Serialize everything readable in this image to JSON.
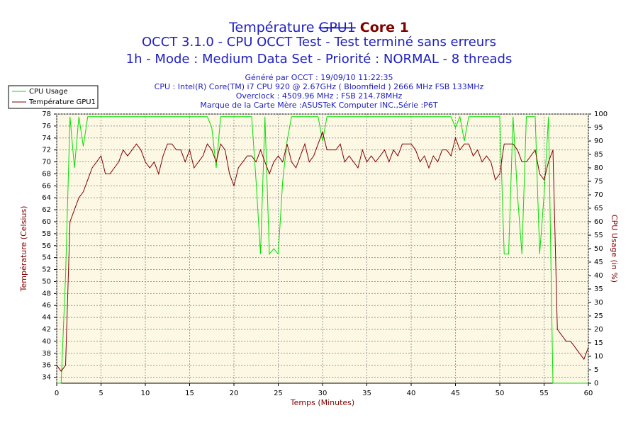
{
  "chart_data": {
    "type": "line",
    "title": "Température",
    "title_struck": "GPU1",
    "title_overlay": "Core 1",
    "subtitles": [
      "OCCT 3.1.0 - CPU OCCT Test - Test terminé sans erreurs",
      "1h - Mode : Medium Data Set - Priorité : NORMAL - 8 threads"
    ],
    "info": [
      "Généré par OCCT : 19/09/10 11:22:35",
      "CPU : Intel(R) Core(TM) i7 CPU 920 @ 2.67GHz ( Bloomfield ) 2666 MHz FSB 133MHz",
      "Overclock : 4509.96 MHz ; FSB 214.78MHz",
      "Marque de la Carte Mère :ASUSTeK Computer INC.,Série :P6T"
    ],
    "x_label": "Temps (Minutes)",
    "y_label": "Température (Celsius)",
    "y2_label": "CPU Usage (in %)",
    "xlim": [
      0,
      60
    ],
    "xticks": [
      0,
      5,
      10,
      15,
      20,
      25,
      30,
      35,
      40,
      45,
      50,
      55,
      60
    ],
    "ylim": [
      33,
      78
    ],
    "yticks": [
      34,
      36,
      38,
      40,
      42,
      44,
      46,
      48,
      50,
      52,
      54,
      56,
      58,
      60,
      62,
      64,
      66,
      68,
      70,
      72,
      74,
      76,
      78
    ],
    "y2lim": [
      0,
      100
    ],
    "y2ticks": [
      0,
      5,
      10,
      15,
      20,
      25,
      30,
      35,
      40,
      45,
      50,
      55,
      60,
      65,
      70,
      75,
      80,
      85,
      90,
      95,
      100
    ],
    "grid": true,
    "legend": "top-left",
    "x": [
      0,
      0.5,
      1,
      1.5,
      2,
      2.5,
      3,
      3.5,
      4,
      4.5,
      5,
      5.5,
      6,
      6.5,
      7,
      7.5,
      8,
      8.5,
      9,
      9.5,
      10,
      10.5,
      11,
      11.5,
      12,
      12.5,
      13,
      13.5,
      14,
      14.5,
      15,
      15.5,
      16,
      16.5,
      17,
      17.5,
      18,
      18.5,
      19,
      19.5,
      20,
      20.5,
      21,
      21.5,
      22,
      22.5,
      23,
      23.5,
      24,
      24.5,
      25,
      25.5,
      26,
      26.5,
      27,
      27.5,
      28,
      28.5,
      29,
      29.5,
      30,
      30.5,
      31,
      31.5,
      32,
      32.5,
      33,
      33.5,
      34,
      34.5,
      35,
      35.5,
      36,
      36.5,
      37,
      37.5,
      38,
      38.5,
      39,
      39.5,
      40,
      40.5,
      41,
      41.5,
      42,
      42.5,
      43,
      43.5,
      44,
      44.5,
      45,
      45.5,
      46,
      46.5,
      47,
      47.5,
      48,
      48.5,
      49,
      49.5,
      50,
      50.5,
      51,
      51.5,
      52,
      52.5,
      53,
      53.5,
      54,
      54.5,
      55,
      55.5,
      56,
      56.5,
      57,
      57.5,
      58,
      58.5,
      59,
      59.5,
      60
    ],
    "series": [
      {
        "name": "CPU Usage",
        "color": "#00e000",
        "axis": "y2",
        "values": [
          0,
          0,
          40,
          99,
          80,
          99,
          88,
          99,
          99,
          99,
          99,
          99,
          99,
          99,
          99,
          99,
          99,
          99,
          99,
          99,
          99,
          99,
          99,
          99,
          99,
          99,
          99,
          99,
          99,
          99,
          99,
          99,
          99,
          99,
          99,
          95,
          80,
          99,
          99,
          99,
          99,
          99,
          99,
          99,
          99,
          75,
          48,
          99,
          48,
          50,
          48,
          75,
          90,
          99,
          99,
          99,
          99,
          99,
          99,
          99,
          90,
          99,
          99,
          99,
          99,
          99,
          99,
          99,
          99,
          99,
          99,
          99,
          99,
          99,
          99,
          99,
          99,
          99,
          99,
          99,
          99,
          99,
          99,
          99,
          99,
          99,
          99,
          99,
          99,
          99,
          95,
          99,
          90,
          99,
          99,
          99,
          99,
          99,
          99,
          99,
          99,
          48,
          48,
          99,
          70,
          48,
          99,
          99,
          99,
          48,
          70,
          99,
          0,
          0,
          0,
          0,
          0,
          0,
          0,
          0,
          0
        ]
      },
      {
        "name": "Température GPU1",
        "color": "#800000",
        "values": [
          36,
          35,
          36,
          60,
          62,
          64,
          65,
          67,
          69,
          70,
          71,
          68,
          68,
          69,
          70,
          72,
          71,
          72,
          73,
          72,
          70,
          69,
          70,
          68,
          71,
          73,
          73,
          72,
          72,
          70,
          72,
          69,
          70,
          71,
          73,
          72,
          70,
          73,
          72,
          68,
          66,
          69,
          70,
          71,
          71,
          70,
          72,
          70,
          68,
          70,
          71,
          70,
          73,
          70,
          69,
          71,
          73,
          70,
          71,
          73,
          75,
          72,
          72,
          72,
          73,
          70,
          71,
          70,
          69,
          72,
          70,
          71,
          70,
          71,
          72,
          70,
          72,
          71,
          73,
          73,
          73,
          72,
          70,
          71,
          69,
          71,
          70,
          72,
          72,
          71,
          74,
          72,
          73,
          73,
          71,
          72,
          70,
          71,
          70,
          67,
          68,
          73,
          73,
          73,
          72,
          70,
          70,
          71,
          72,
          68,
          67,
          70,
          72,
          42,
          41,
          40,
          40,
          39,
          38,
          37,
          39
        ]
      }
    ]
  }
}
